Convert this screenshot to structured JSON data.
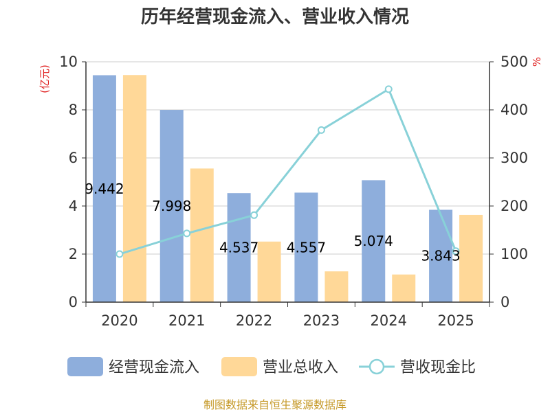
{
  "chart_data": {
    "type": "bar",
    "title": "历年经营现金流入、营业收入情况",
    "categories": [
      "2020",
      "2021",
      "2022",
      "2023",
      "2024",
      "2025"
    ],
    "series": [
      {
        "name": "经营现金流入",
        "type": "bar",
        "axis": "left",
        "color": "#8eaedc",
        "values": [
          9.442,
          7.998,
          4.537,
          4.557,
          5.074,
          3.843
        ],
        "labels": [
          "9.442",
          "7.998",
          "4.537",
          "4.557",
          "5.074",
          "3.843"
        ]
      },
      {
        "name": "营业总收入",
        "type": "bar",
        "axis": "left",
        "color": "#ffd898",
        "values": [
          9.45,
          5.56,
          2.52,
          1.28,
          1.15,
          3.63
        ]
      },
      {
        "name": "营收现金比",
        "type": "line",
        "axis": "right",
        "color": "#88d1d8",
        "values": [
          100,
          143,
          181,
          358,
          443,
          106
        ]
      }
    ],
    "y_left": {
      "unit": "(亿元)",
      "ylim": [
        0,
        10
      ],
      "ticks": [
        "0",
        "2",
        "4",
        "6",
        "8",
        "10"
      ]
    },
    "y_right": {
      "unit": "%",
      "ylim": [
        0,
        500
      ],
      "ticks": [
        "0",
        "100",
        "200",
        "300",
        "400",
        "500"
      ]
    },
    "grid": true,
    "legend_position": "bottom",
    "source": "制图数据来自恒生聚源数据库"
  }
}
